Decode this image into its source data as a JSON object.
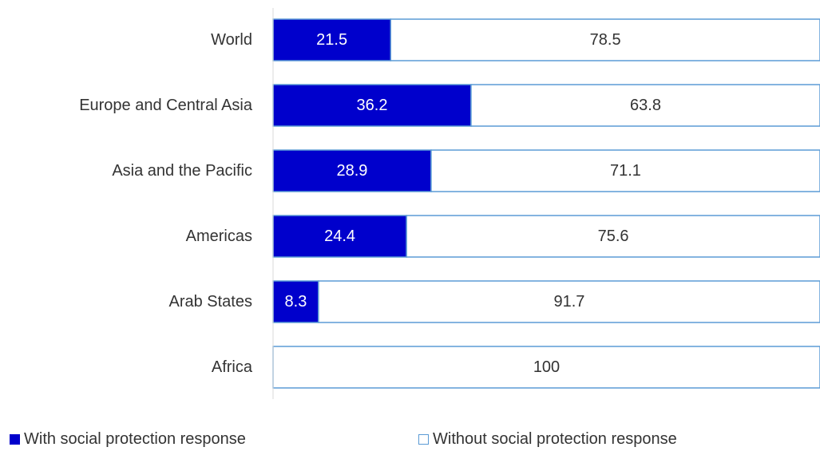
{
  "chart_data": {
    "type": "bar",
    "orientation": "horizontal",
    "stacked": true,
    "categories": [
      "World",
      "Europe and Central Asia",
      "Asia and the Pacific",
      "Americas",
      "Arab States",
      "Africa"
    ],
    "series": [
      {
        "name": "With social protection response",
        "values": [
          21.5,
          36.2,
          28.9,
          24.4,
          8.3,
          0
        ],
        "color": "#0000cc"
      },
      {
        "name": "Without social protection response",
        "values": [
          78.5,
          63.8,
          71.1,
          75.6,
          91.7,
          100
        ],
        "color": "#ffffff"
      }
    ],
    "xlim": [
      0,
      100
    ],
    "grid": false,
    "legend_position": "bottom",
    "bar_outline_color": "#5b9bd5"
  }
}
